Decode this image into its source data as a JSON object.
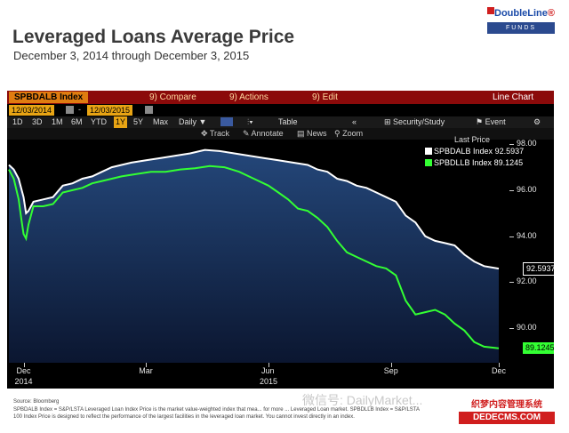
{
  "logo": {
    "name": "DoubleLine",
    "sub": "FUNDS"
  },
  "title": "Leveraged Loans Average Price",
  "subtitle": "December 3, 2014 through December 3, 2015",
  "terminal": {
    "ticker": "SPBDALB Index",
    "compare": "9) Compare",
    "actions": "9) Actions",
    "edit": "9) Edit",
    "chart_type": "Line Chart",
    "start_date": "12/03/2014",
    "end_date": "12/03/2015",
    "periods": [
      "1D",
      "3D",
      "1M",
      "6M",
      "YTD",
      "1Y",
      "5Y",
      "Max"
    ],
    "selected_period": "1Y",
    "frequency": "Daily",
    "table_btn": "Table",
    "security_study": "Security/Study",
    "event": "Event",
    "track": "Track",
    "annotate": "Annotate",
    "news": "News",
    "zoom": "Zoom",
    "legend_title": "Last Price"
  },
  "colors": {
    "white_series": "#ffffff",
    "green_series": "#33ff33",
    "plot_top": "#21406e",
    "plot_bottom": "#0b1630"
  },
  "chart_data": {
    "type": "line",
    "ylim": [
      88.5,
      98.2
    ],
    "y_ticks": [
      "98.00",
      "96.00",
      "94.00",
      "92.00",
      "90.00"
    ],
    "y_tick_values": [
      98,
      96,
      94,
      92,
      90
    ],
    "x_labels": [
      {
        "label": "Dec",
        "sub": "2014",
        "x": 0.03
      },
      {
        "label": "Mar",
        "sub": "",
        "x": 0.28
      },
      {
        "label": "Jun",
        "sub": "2015",
        "x": 0.53
      },
      {
        "label": "Sep",
        "sub": "",
        "x": 0.78
      },
      {
        "label": "Dec",
        "sub": "",
        "x": 1.0
      }
    ],
    "series": [
      {
        "name": "SPBDALB Index",
        "last": "92.5937",
        "color": "#ffffff",
        "points": [
          [
            0.0,
            97.1
          ],
          [
            0.01,
            96.9
          ],
          [
            0.02,
            96.5
          ],
          [
            0.03,
            95.7
          ],
          [
            0.035,
            95.0
          ],
          [
            0.04,
            95.1
          ],
          [
            0.05,
            95.5
          ],
          [
            0.07,
            95.6
          ],
          [
            0.09,
            95.7
          ],
          [
            0.11,
            96.2
          ],
          [
            0.13,
            96.3
          ],
          [
            0.15,
            96.5
          ],
          [
            0.17,
            96.6
          ],
          [
            0.19,
            96.8
          ],
          [
            0.21,
            97.0
          ],
          [
            0.23,
            97.1
          ],
          [
            0.25,
            97.2
          ],
          [
            0.28,
            97.3
          ],
          [
            0.31,
            97.4
          ],
          [
            0.34,
            97.5
          ],
          [
            0.37,
            97.6
          ],
          [
            0.4,
            97.75
          ],
          [
            0.43,
            97.7
          ],
          [
            0.46,
            97.6
          ],
          [
            0.49,
            97.5
          ],
          [
            0.52,
            97.4
          ],
          [
            0.55,
            97.3
          ],
          [
            0.58,
            97.2
          ],
          [
            0.61,
            97.1
          ],
          [
            0.63,
            96.9
          ],
          [
            0.65,
            96.8
          ],
          [
            0.67,
            96.5
          ],
          [
            0.69,
            96.4
          ],
          [
            0.71,
            96.2
          ],
          [
            0.73,
            96.1
          ],
          [
            0.75,
            95.9
          ],
          [
            0.77,
            95.7
          ],
          [
            0.79,
            95.5
          ],
          [
            0.81,
            94.9
          ],
          [
            0.83,
            94.6
          ],
          [
            0.85,
            94.0
          ],
          [
            0.87,
            93.8
          ],
          [
            0.89,
            93.7
          ],
          [
            0.91,
            93.6
          ],
          [
            0.93,
            93.2
          ],
          [
            0.95,
            92.9
          ],
          [
            0.97,
            92.7
          ],
          [
            1.0,
            92.5937
          ]
        ]
      },
      {
        "name": "SPBDLLB Index",
        "last": "89.1245",
        "color": "#33ff33",
        "points": [
          [
            0.0,
            96.9
          ],
          [
            0.01,
            96.5
          ],
          [
            0.02,
            95.6
          ],
          [
            0.025,
            94.8
          ],
          [
            0.03,
            94.1
          ],
          [
            0.035,
            93.9
          ],
          [
            0.04,
            94.5
          ],
          [
            0.05,
            95.3
          ],
          [
            0.07,
            95.3
          ],
          [
            0.09,
            95.4
          ],
          [
            0.11,
            95.9
          ],
          [
            0.13,
            96.0
          ],
          [
            0.15,
            96.1
          ],
          [
            0.17,
            96.3
          ],
          [
            0.19,
            96.4
          ],
          [
            0.21,
            96.5
          ],
          [
            0.23,
            96.6
          ],
          [
            0.26,
            96.7
          ],
          [
            0.29,
            96.8
          ],
          [
            0.32,
            96.8
          ],
          [
            0.35,
            96.9
          ],
          [
            0.38,
            96.95
          ],
          [
            0.41,
            97.05
          ],
          [
            0.44,
            97.0
          ],
          [
            0.47,
            96.8
          ],
          [
            0.5,
            96.5
          ],
          [
            0.53,
            96.2
          ],
          [
            0.55,
            95.9
          ],
          [
            0.57,
            95.6
          ],
          [
            0.59,
            95.2
          ],
          [
            0.61,
            95.1
          ],
          [
            0.63,
            94.8
          ],
          [
            0.65,
            94.4
          ],
          [
            0.67,
            93.8
          ],
          [
            0.69,
            93.3
          ],
          [
            0.71,
            93.1
          ],
          [
            0.73,
            92.9
          ],
          [
            0.75,
            92.7
          ],
          [
            0.77,
            92.6
          ],
          [
            0.79,
            92.3
          ],
          [
            0.81,
            91.2
          ],
          [
            0.83,
            90.6
          ],
          [
            0.85,
            90.7
          ],
          [
            0.87,
            90.8
          ],
          [
            0.89,
            90.6
          ],
          [
            0.91,
            90.2
          ],
          [
            0.93,
            89.9
          ],
          [
            0.95,
            89.4
          ],
          [
            0.97,
            89.2
          ],
          [
            1.0,
            89.1245
          ]
        ]
      }
    ]
  },
  "footer": {
    "source": "Source: Bloomberg",
    "note1": "SPBDALB Index = S&P/LSTA Leveraged Loan Index Price is the market value-weighted index that mea... for more ... Leveraged Loan market. SPBDLLB Index = S&P/LSTA",
    "note2": "100 Index Price is designed to reflect the performance of the largest facilities in the leveraged loan market. You cannot invest directly in an index."
  },
  "watermark": {
    "text": "微信号: DailyMarket...",
    "badge_top": "织梦内容管理系统",
    "badge_bottom": "DEDECMS.COM"
  }
}
